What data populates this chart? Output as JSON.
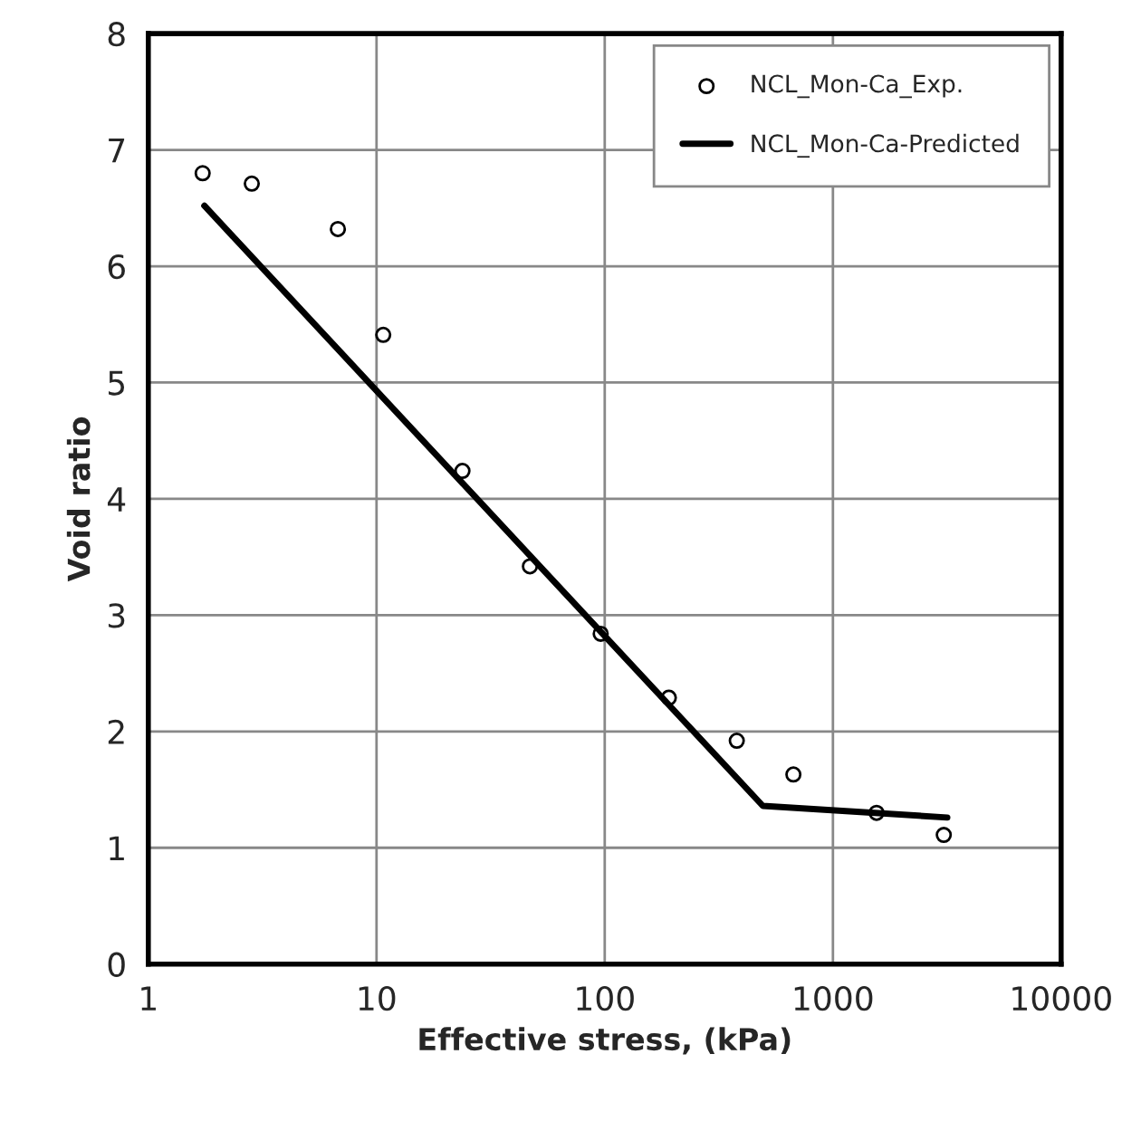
{
  "chart_data": {
    "type": "scatter",
    "xlabel": "Effective stress, (kPa)",
    "ylabel": "Void ratio",
    "log": "x",
    "xlim": [
      1,
      10000
    ],
    "xticks": [
      1,
      10,
      100,
      1000,
      10000
    ],
    "ylim": [
      0,
      8
    ],
    "yticks": [
      0,
      1,
      2,
      3,
      4,
      5,
      6,
      7,
      8
    ],
    "grid": true,
    "legend": "top right",
    "series": [
      {
        "name": "NCL_Mon-Ca_Exp.",
        "marker": "circle",
        "color": "#000000",
        "x": [
          1.73,
          2.84,
          6.77,
          10.7,
          23.8,
          47,
          96,
          191,
          379,
          671,
          1553,
          3060
        ],
        "values": [
          6.8,
          6.71,
          6.32,
          5.41,
          4.24,
          3.42,
          2.84,
          2.29,
          1.92,
          1.63,
          1.3,
          1.11
        ]
      },
      {
        "name": "NCL_Mon-Ca-Predicted",
        "type": "line",
        "marker": "none",
        "line_style": "solid",
        "color": "#000000",
        "x": [
          1.76,
          493,
          3170
        ],
        "values": [
          6.52,
          1.36,
          1.26
        ]
      }
    ]
  }
}
